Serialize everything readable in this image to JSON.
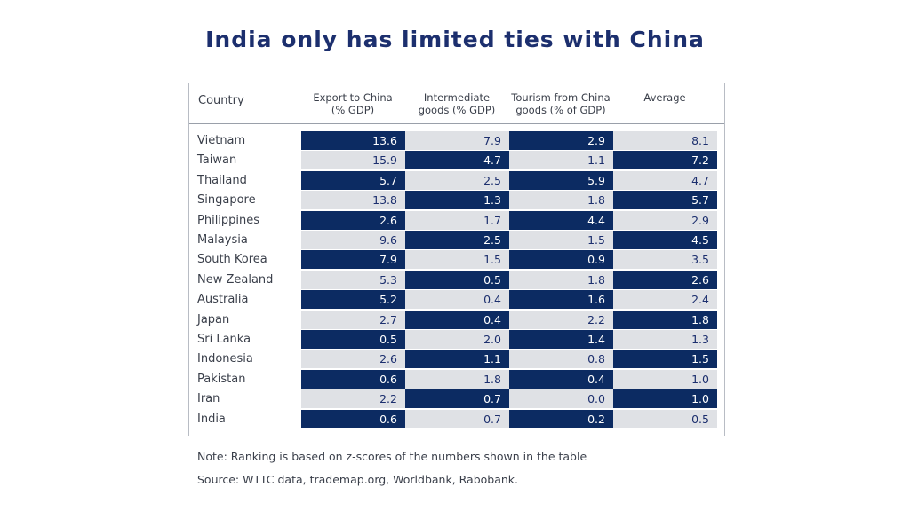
{
  "title": "India only has limited ties with China",
  "chart_data": {
    "type": "table",
    "columns": [
      "Country",
      "Export to China\n(% GDP)",
      "Intermediate\ngoods (% GDP)",
      "Tourism from China\ngoods (% of GDP)",
      "Average"
    ],
    "rows": [
      {
        "country": "Vietnam",
        "values": [
          "13.6",
          "7.9",
          "2.9",
          "8.1"
        ],
        "dark": [
          true,
          false,
          true,
          false
        ]
      },
      {
        "country": "Taiwan",
        "values": [
          "15.9",
          "4.7",
          "1.1",
          "7.2"
        ],
        "dark": [
          false,
          true,
          false,
          true
        ]
      },
      {
        "country": "Thailand",
        "values": [
          "5.7",
          "2.5",
          "5.9",
          "4.7"
        ],
        "dark": [
          true,
          false,
          true,
          false
        ]
      },
      {
        "country": "Singapore",
        "values": [
          "13.8",
          "1.3",
          "1.8",
          "5.7"
        ],
        "dark": [
          false,
          true,
          false,
          true
        ]
      },
      {
        "country": "Philippines",
        "values": [
          "2.6",
          "1.7",
          "4.4",
          "2.9"
        ],
        "dark": [
          true,
          false,
          true,
          false
        ]
      },
      {
        "country": "Malaysia",
        "values": [
          "9.6",
          "2.5",
          "1.5",
          "4.5"
        ],
        "dark": [
          false,
          true,
          false,
          true
        ]
      },
      {
        "country": "South Korea",
        "values": [
          "7.9",
          "1.5",
          "0.9",
          "3.5"
        ],
        "dark": [
          true,
          false,
          true,
          false
        ]
      },
      {
        "country": "New Zealand",
        "values": [
          "5.3",
          "0.5",
          "1.8",
          "2.6"
        ],
        "dark": [
          false,
          true,
          false,
          true
        ]
      },
      {
        "country": "Australia",
        "values": [
          "5.2",
          "0.4",
          "1.6",
          "2.4"
        ],
        "dark": [
          true,
          false,
          true,
          false
        ]
      },
      {
        "country": "Japan",
        "values": [
          "2.7",
          "0.4",
          "2.2",
          "1.8"
        ],
        "dark": [
          false,
          true,
          false,
          true
        ]
      },
      {
        "country": "Sri Lanka",
        "values": [
          "0.5",
          "2.0",
          "1.4",
          "1.3"
        ],
        "dark": [
          true,
          false,
          true,
          false
        ]
      },
      {
        "country": "Indonesia",
        "values": [
          "2.6",
          "1.1",
          "0.8",
          "1.5"
        ],
        "dark": [
          false,
          true,
          false,
          true
        ]
      },
      {
        "country": "Pakistan",
        "values": [
          "0.6",
          "1.8",
          "0.4",
          "1.0"
        ],
        "dark": [
          true,
          false,
          true,
          false
        ]
      },
      {
        "country": "Iran",
        "values": [
          "2.2",
          "0.7",
          "0.0",
          "1.0"
        ],
        "dark": [
          false,
          true,
          false,
          true
        ]
      },
      {
        "country": "India",
        "values": [
          "0.6",
          "0.7",
          "0.2",
          "0.5"
        ],
        "dark": [
          true,
          false,
          true,
          false
        ]
      }
    ]
  },
  "note": "Note: Ranking is based on z-scores of the numbers shown in the table",
  "source": "Source: WTTC data, trademap.org, Worldbank, Rabobank.",
  "colors": {
    "dark_cell": "#0c2b62",
    "light_cell": "#dfe1e5",
    "title": "#1c2f6e"
  }
}
